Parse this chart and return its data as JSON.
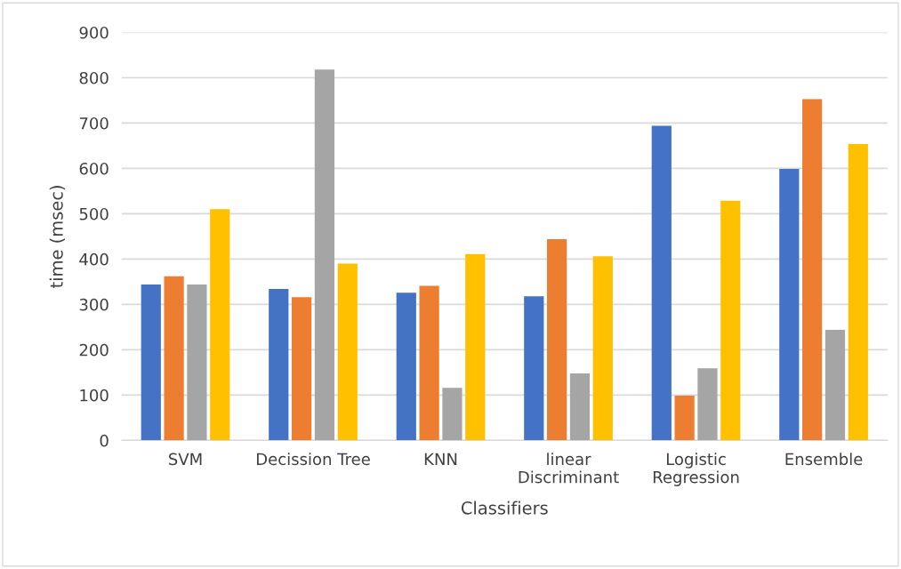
{
  "chart_data": {
    "type": "bar",
    "xlabel": "Classifiers",
    "ylabel": "time (msec)",
    "categories": [
      "SVM",
      "Decission Tree",
      "KNN",
      "linear\nDiscriminant",
      "Logistic\nRegression",
      "Ensemble"
    ],
    "series": [
      {
        "color": "#4472c4",
        "values": [
          344,
          334,
          326,
          318,
          694,
          599
        ]
      },
      {
        "color": "#ed7d31",
        "values": [
          362,
          316,
          341,
          444,
          99,
          753
        ]
      },
      {
        "color": "#a5a5a5",
        "values": [
          344,
          818,
          116,
          148,
          159,
          244
        ]
      },
      {
        "color": "#ffc000",
        "values": [
          510,
          390,
          411,
          406,
          529,
          654
        ]
      }
    ],
    "ylim": [
      0,
      900
    ],
    "yticks": [
      0,
      100,
      200,
      300,
      400,
      500,
      600,
      700,
      800,
      900
    ],
    "grid": "y",
    "legend": false
  }
}
